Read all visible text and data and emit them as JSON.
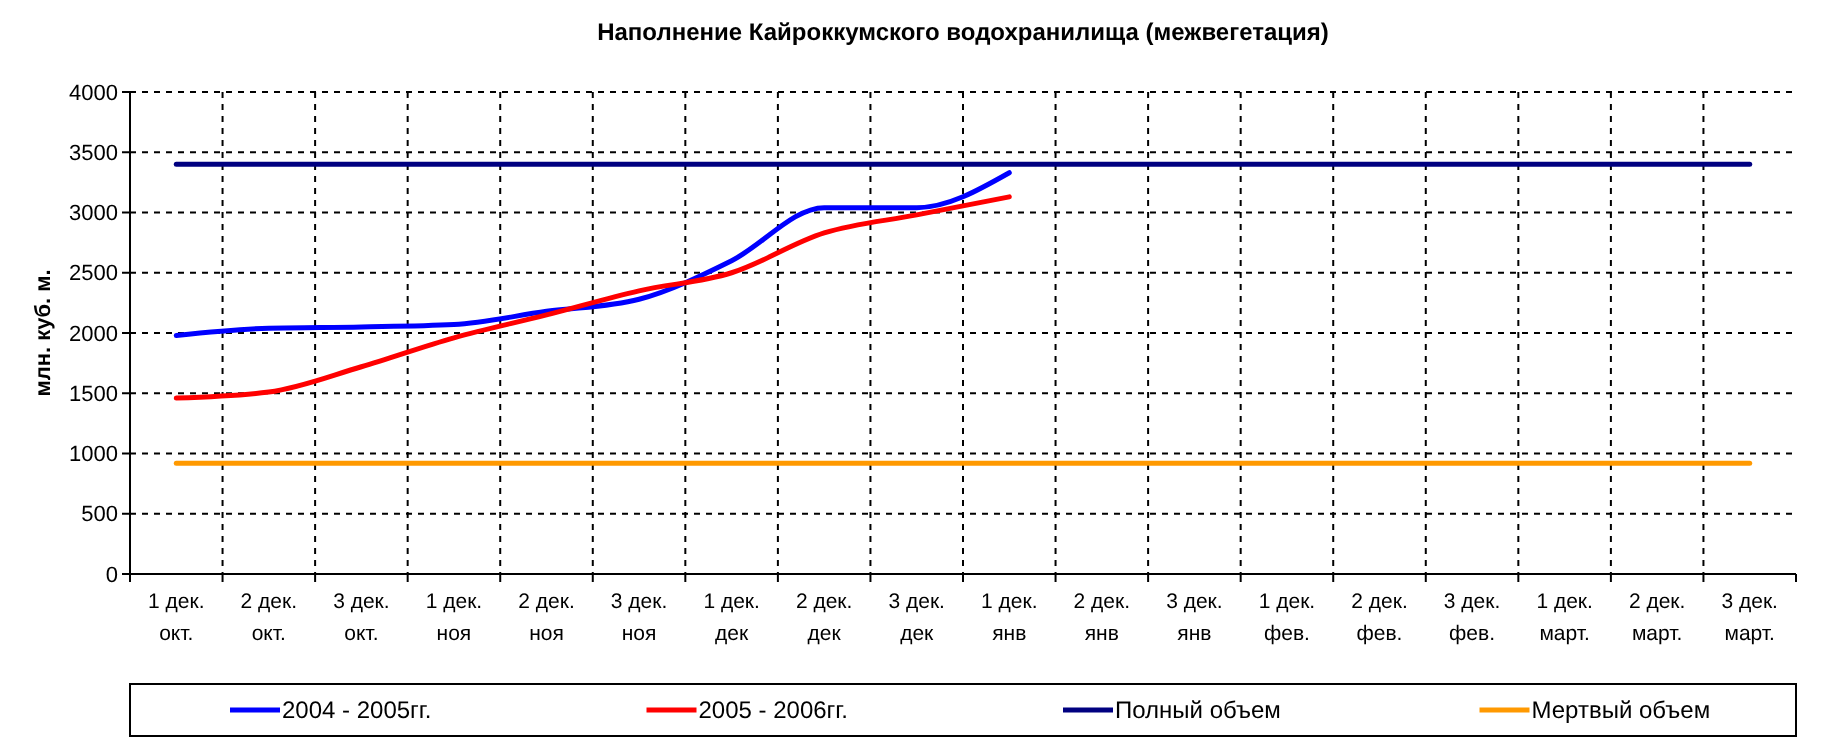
{
  "chart_data": {
    "type": "line",
    "title": "Наполнение Кайроккумского водохранилища (межвегетация)",
    "ylabel": "млн. куб. м.",
    "categories": [
      "1 дек. окт.",
      "2 дек. окт.",
      "3 дек. окт.",
      "1 дек. ноя",
      "2 дек. ноя",
      "3 дек. ноя",
      "1 дек. дек",
      "2 дек. дек",
      "3 дек. дек",
      "1 дек. янв",
      "2 дек. янв",
      "3 дек. янв",
      "1 дек. фев.",
      "2 дек. фев.",
      "3 дек. фев.",
      "1 дек. март.",
      "2 дек. март.",
      "3 дек. март."
    ],
    "series": [
      {
        "name": "2004 - 2005гг.",
        "color": "#0000ff",
        "values": [
          1980,
          2040,
          2050,
          2070,
          2180,
          2280,
          2600,
          3040,
          3040,
          3330,
          null,
          null,
          null,
          null,
          null,
          null,
          null,
          null
        ]
      },
      {
        "name": "2005 - 2006гг.",
        "color": "#ff0000",
        "values": [
          1460,
          1510,
          1720,
          1960,
          2150,
          2350,
          2500,
          2830,
          2980,
          3130,
          null,
          null,
          null,
          null,
          null,
          null,
          null,
          null
        ]
      },
      {
        "name": "Полный объем",
        "color": "#000080",
        "values": [
          3400,
          3400,
          3400,
          3400,
          3400,
          3400,
          3400,
          3400,
          3400,
          3400,
          3400,
          3400,
          3400,
          3400,
          3400,
          3400,
          3400,
          3400
        ]
      },
      {
        "name": "Мертвый объем",
        "color": "#ff9900",
        "values": [
          920,
          920,
          920,
          920,
          920,
          920,
          920,
          920,
          920,
          920,
          920,
          920,
          920,
          920,
          920,
          920,
          920,
          920
        ]
      }
    ],
    "ylim": [
      0,
      4000
    ],
    "yticks": [
      0,
      500,
      1000,
      1500,
      2000,
      2500,
      3000,
      3500,
      4000
    ],
    "grid": true,
    "legend": "bottom",
    "marker": "none",
    "line_style": "solid"
  }
}
